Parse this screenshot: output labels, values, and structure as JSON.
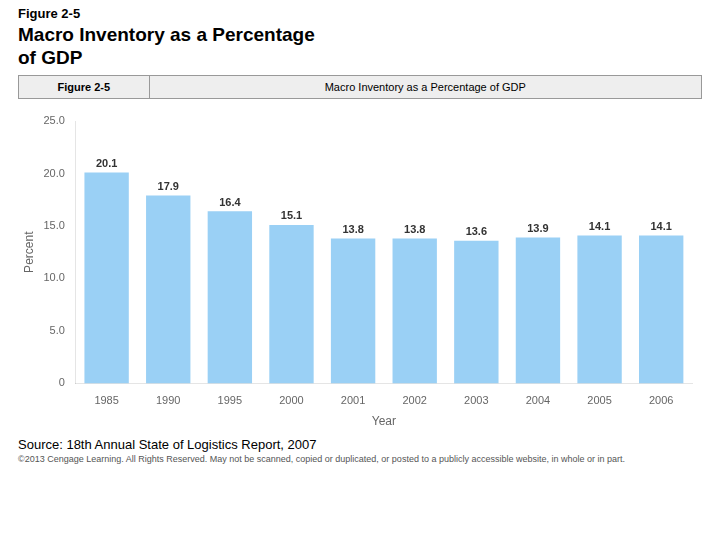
{
  "chart_data": {
    "type": "bar",
    "title": [
      "Figure 2-5",
      "Macro Inventory as a Percentage",
      "of GDP"
    ],
    "subtitle": [
      "Figure 2-5",
      "Macro Inventory as a Percentage of GDP"
    ],
    "annotations": [
      "Source: 18th Annual State of Logistics Report, 2007",
      "©2013 Cengage Learning. All Rights Reserved. May not be scanned, copied or duplicated, or posted to a publicly accessible website, in whole or in part."
    ],
    "x_label": "Year",
    "y_label": "Percent",
    "categories": [
      "1985",
      "1990",
      "1995",
      "2000",
      "2001",
      "2002",
      "2003",
      "2004",
      "2005",
      "2006"
    ],
    "values": [
      20.1,
      17.9,
      16.4,
      15.1,
      13.8,
      13.8,
      13.6,
      13.9,
      14.1,
      14.1
    ],
    "ylim": [
      0,
      25
    ],
    "yticks": [
      0,
      {
        "value": 5,
        "label": "5.0"
      },
      {
        "value": 10,
        "label": "10.0"
      },
      {
        "value": 15,
        "label": "15.0"
      },
      {
        "value": 20,
        "label": "20.0"
      },
      {
        "value": 25,
        "label": "25.0"
      }
    ],
    "grid": false,
    "data_labels": true
  }
}
